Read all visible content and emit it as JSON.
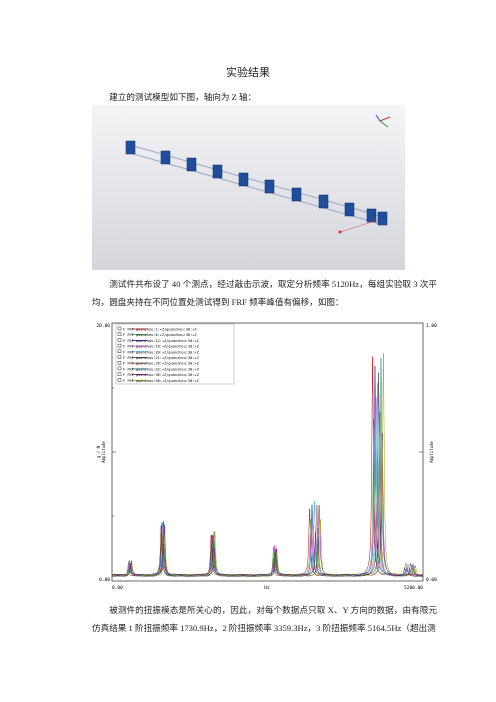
{
  "title": "实验结果",
  "paragraphs": [
    "建立的测试模型如下图，轴向为 Z 轴：",
    "测试件共布设了 40 个测点，经过敲击示波，取定分析频率 5120Hz，每组实验取 3 次平均，圆盘夹持在不同位置处测试得到 FRF 频率峰值有偏移，如图：",
    "被测件的扭振模态是所关心的，因此，对每个数据点只取 X、Y 方向的数据，由有限元仿真结果 1 阶扭振频率 1730.9Hz，2 阶扭振频率 3359.3Hz，3 阶扭振频率 5164.5Hz（超出测"
  ],
  "figure": {
    "left_top": "20.00",
    "left_bottom": "0.00",
    "right_top": "1.00",
    "right_bottom": "0.00",
    "x_start": "0.00",
    "x_unit": "Hz",
    "x_end": "5200.00",
    "left_axis_label": [
      "g / N",
      "Amplitude"
    ],
    "right_axis_label": "Amplitude",
    "legend": [
      "F      FRF  guanzhou:1:+Z/guanzhou:30:+Z",
      "F      FRF  guanzhou:6:+Z/guanzhou:30:+Z",
      "F      FRF  guanzhou:12:+Z/guanzhou:30:+Z",
      "F      FRF  guanzhou:16:+Z/guanzhou:30:+Z",
      "F      FRF  guanzhou:20:+Z/guanzhou:30:+Z",
      "F      FRF  guanzhou:21:+Z/guanzhou:30:+Z",
      "F      FRF  guanzhou:26:+Z/guanzhou:30:+Z",
      "F      FRF  guanzhou:32:+Z/guanzhou:30:+Z",
      "F      FRF  guanzhou:36:+Z/guanzhou:30:+Z",
      "F      FRF  guanzhou:40:+Z/guanzhou:30:+Z"
    ]
  }
}
